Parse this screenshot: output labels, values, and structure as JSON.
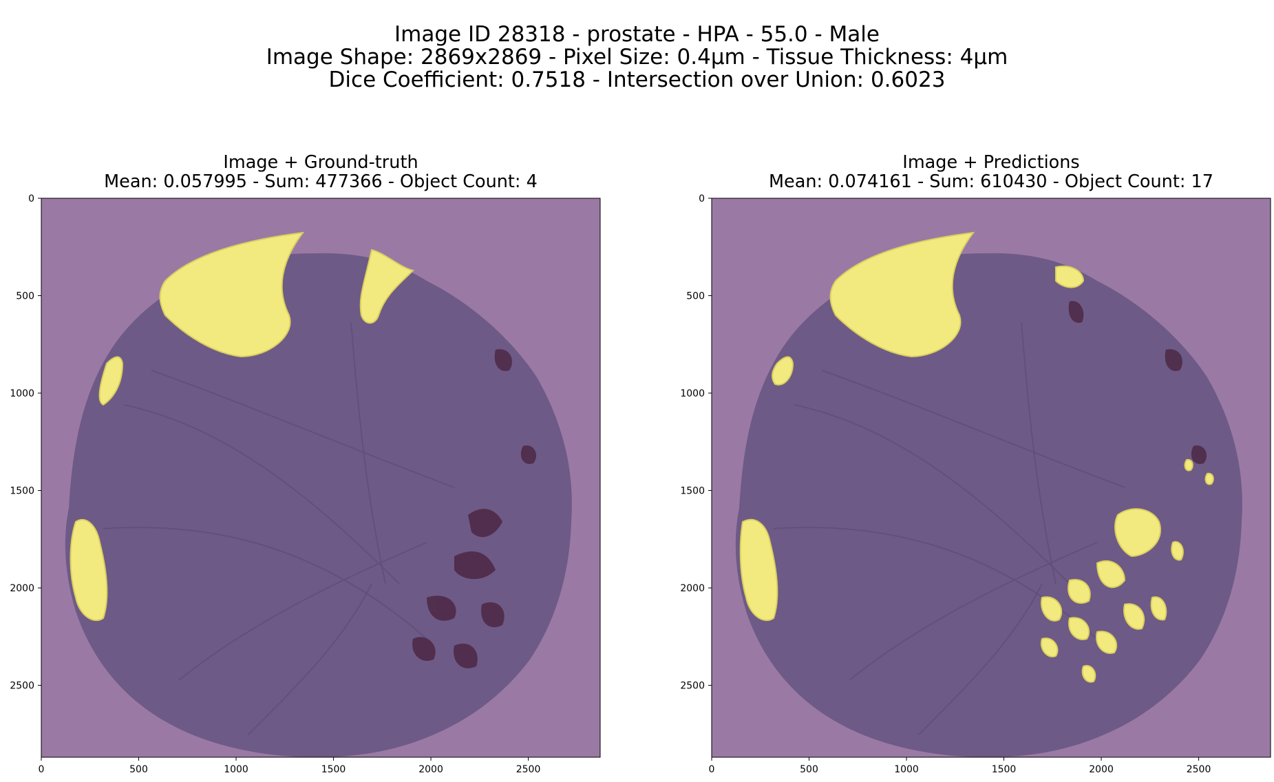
{
  "figure": {
    "title_lines": [
      "Image ID 28318 - prostate - HPA - 55.0 - Male",
      "Image Shape: 2869x2869 - Pixel Size: 0.4µm - Tissue Thickness: 4µm",
      "Dice Coefficient: 0.7518 - Intersection over Union: 0.6023"
    ]
  },
  "panels": [
    {
      "title": "Image + Ground-truth",
      "subtitle": "Mean: 0.057995 - Sum: 477366 - Object Count: 4"
    },
    {
      "title": "Image + Predictions",
      "subtitle": "Mean: 0.074161 - Sum: 610430 - Object Count: 17"
    }
  ],
  "axes": {
    "x_ticks": [
      "0",
      "500",
      "1000",
      "1500",
      "2000",
      "2500"
    ],
    "y_ticks": [
      "0",
      "500",
      "1000",
      "1500",
      "2000",
      "2500"
    ],
    "range": [
      0,
      2869
    ]
  },
  "colors": {
    "background_mask": "#9a7aa5",
    "tissue": "#6e5a86",
    "mask_overlay": "#f3ea7f",
    "gland_dark": "#4a2440"
  }
}
